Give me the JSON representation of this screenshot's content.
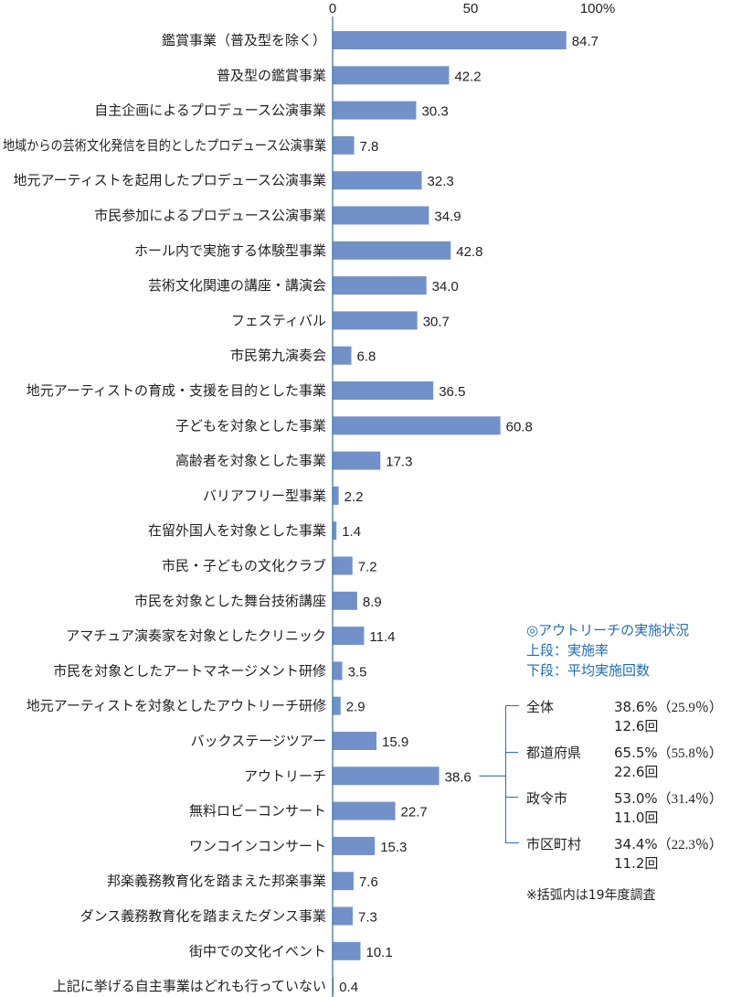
{
  "chart_data": {
    "type": "bar",
    "orientation": "horizontal",
    "xlim": [
      0,
      100
    ],
    "ticks": [
      "0",
      "50",
      "100%"
    ],
    "categories": [
      "鑑賞事業（普及型を除く）",
      "普及型の鑑賞事業",
      "自主企画によるプロデュース公演事業",
      "地域からの芸術文化発信を目的としたプロデュース公演事業",
      "地元アーティストを起用したプロデュース公演事業",
      "市民参加によるプロデュース公演事業",
      "ホール内で実施する体験型事業",
      "芸術文化関連の講座・講演会",
      "フェスティバル",
      "市民第九演奏会",
      "地元アーティストの育成・支援を目的とした事業",
      "子どもを対象とした事業",
      "高齢者を対象とした事業",
      "バリアフリー型事業",
      "在留外国人を対象とした事業",
      "市民・子どもの文化クラブ",
      "市民を対象とした舞台技術講座",
      "アマチュア演奏家を対象としたクリニック",
      "市民を対象としたアートマネージメント研修",
      "地元アーティストを対象としたアウトリーチ研修",
      "バックステージツアー",
      "アウトリーチ",
      "無料ロビーコンサート",
      "ワンコインコンサート",
      "邦楽義務教育化を踏まえた邦楽事業",
      "ダンス義務教育化を踏まえたダンス事業",
      "街中での文化イベント",
      "上記に挙げる自主事業はどれも行っていない"
    ],
    "values": [
      84.7,
      42.2,
      30.3,
      7.8,
      32.3,
      34.9,
      42.8,
      34.0,
      30.7,
      6.8,
      36.5,
      60.8,
      17.3,
      2.2,
      1.4,
      7.2,
      8.9,
      11.4,
      3.5,
      2.9,
      15.9,
      38.6,
      22.7,
      15.3,
      7.6,
      7.3,
      10.1,
      0.4
    ],
    "value_labels": [
      "84.7",
      "42.2",
      "30.3",
      "7.8",
      "32.3",
      "34.9",
      "42.8",
      "34.0",
      "30.7",
      "6.8",
      "36.5",
      "60.8",
      "17.3",
      "2.2",
      "1.4",
      "7.2",
      "8.9",
      "11.4",
      "3.5",
      "2.9",
      "15.9",
      "38.6",
      "22.7",
      "15.3",
      "7.6",
      "7.3",
      "10.1",
      "0.4"
    ],
    "bar_color": "#7391c9",
    "axis_color": "#2a6fb0",
    "grid": false
  },
  "outreach_panel": {
    "title": "◎アウトリーチの実施状況",
    "line1": "上段：実施率",
    "line2": "下段：平均実施回数",
    "rows": [
      {
        "name": "全体",
        "rate": "38.6%",
        "prev": "（25.9％）",
        "count": "12.6回"
      },
      {
        "name": "都道府県",
        "rate": "65.5%",
        "prev": "（55.8％）",
        "count": "22.6回"
      },
      {
        "name": "政令市",
        "rate": "53.0%",
        "prev": "（31.4％）",
        "count": "11.0回"
      },
      {
        "name": "市区町村",
        "rate": "34.4%",
        "prev": "（22.3％）",
        "count": "11.2回"
      }
    ],
    "note": "※括弧内は19年度調査",
    "title_color": "#1f6db5"
  }
}
